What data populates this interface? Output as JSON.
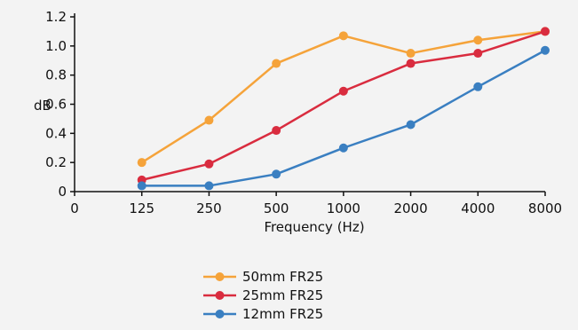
{
  "chart_data": {
    "type": "line",
    "title": "",
    "xlabel": "Frequency (Hz)",
    "ylabel": "dB",
    "x_tick_labels": [
      "0",
      "125",
      "250",
      "500",
      "1000",
      "2000",
      "4000",
      "8000"
    ],
    "categories": [
      "125",
      "250",
      "500",
      "1000",
      "2000",
      "4000",
      "8000"
    ],
    "y_ticks": [
      "0",
      "0.2",
      "0.4",
      "0.6",
      "0.8",
      "1.0",
      "1.2"
    ],
    "ylim": [
      0,
      1.2
    ],
    "grid": false,
    "legend_position": "bottom-center",
    "series": [
      {
        "name": "50mm FR25",
        "color": "#f5a33a",
        "values": [
          0.2,
          0.49,
          0.88,
          1.07,
          0.95,
          1.04,
          1.1
        ]
      },
      {
        "name": "25mm FR25",
        "color": "#d92c3f",
        "values": [
          0.08,
          0.19,
          0.42,
          0.69,
          0.88,
          0.95,
          1.1
        ]
      },
      {
        "name": "12mm FR25",
        "color": "#3a7fc1",
        "values": [
          0.04,
          0.04,
          0.12,
          0.3,
          0.46,
          0.72,
          0.97
        ]
      }
    ]
  }
}
